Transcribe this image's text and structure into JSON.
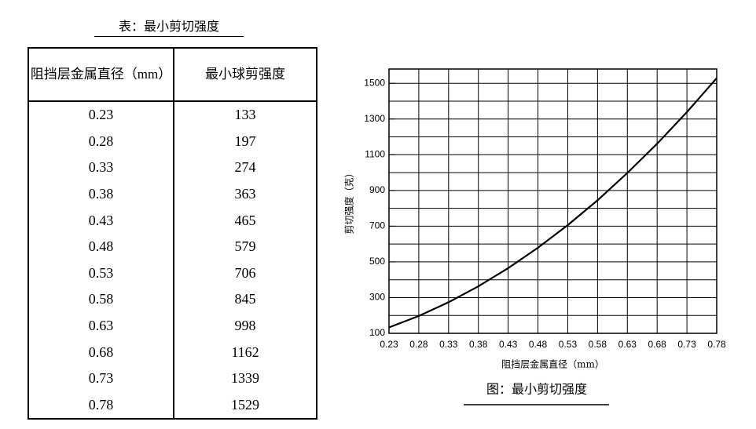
{
  "table": {
    "title": "表：最小剪切强度",
    "header": [
      "阻挡层金属直径（mm）",
      "最小球剪强度"
    ],
    "rows": [
      [
        "0.23",
        "133"
      ],
      [
        "0.28",
        "197"
      ],
      [
        "0.33",
        "274"
      ],
      [
        "0.38",
        "363"
      ],
      [
        "0.43",
        "465"
      ],
      [
        "0.48",
        "579"
      ],
      [
        "0.53",
        "706"
      ],
      [
        "0.58",
        "845"
      ],
      [
        "0.63",
        "998"
      ],
      [
        "0.68",
        "1162"
      ],
      [
        "0.73",
        "1339"
      ],
      [
        "0.78",
        "1529"
      ]
    ]
  },
  "chart_data": {
    "type": "line",
    "caption": "图：最小剪切强度",
    "x_label": "阻挡层金属直径（mm）",
    "y_label": "剪切强度（克）",
    "x": [
      0.23,
      0.28,
      0.33,
      0.38,
      0.43,
      0.48,
      0.53,
      0.58,
      0.63,
      0.68,
      0.73,
      0.78
    ],
    "values": [
      133,
      197,
      274,
      363,
      465,
      579,
      706,
      845,
      998,
      1162,
      1339,
      1529
    ],
    "color": "#000000",
    "xlim": [
      0.23,
      0.78
    ],
    "ylim": [
      100,
      1580
    ],
    "xticks": [
      0.23,
      0.28,
      0.33,
      0.38,
      0.43,
      0.48,
      0.53,
      0.58,
      0.63,
      0.68,
      0.73,
      0.78
    ],
    "yticks": [
      100,
      300,
      500,
      700,
      900,
      1100,
      1300,
      1500
    ],
    "minor_yticks": [
      200,
      400,
      600,
      800,
      1000,
      1200,
      1400
    ],
    "grid": true
  }
}
